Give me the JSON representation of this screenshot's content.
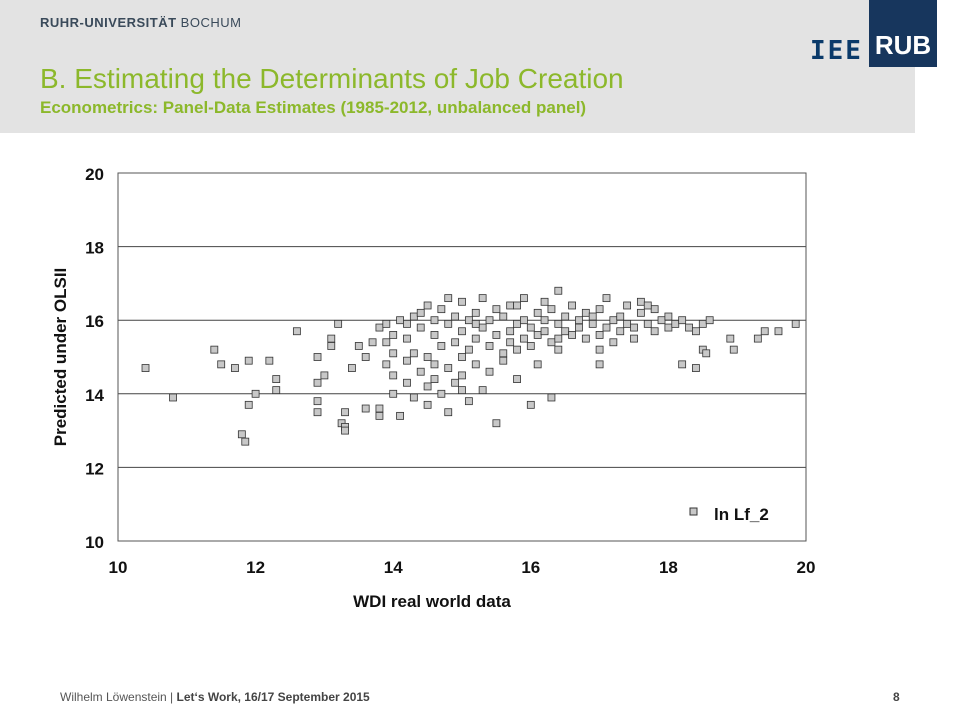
{
  "header": {
    "university_bold": "RUHR-UNIVERSITÄT",
    "university_rest": " BOCHUM",
    "title": "B. Estimating the Determinants of Job Creation",
    "subtitle": "Econometrics: Panel-Data Estimates (1985-2012, unbalanced panel)",
    "logo_iee": "IEE",
    "logo_rub": "RUB"
  },
  "colors": {
    "accent": "#8cb82b",
    "logo_blue": "#17365d",
    "marker_fill": "#c8c8c8",
    "marker_stroke": "#333333"
  },
  "chart_data": {
    "type": "scatter",
    "xlabel": "WDI real world data",
    "ylabel": "Predicted under OLSII",
    "xlim": [
      10,
      20
    ],
    "ylim": [
      10,
      20
    ],
    "xticks": [
      10,
      12,
      14,
      16,
      18,
      20
    ],
    "yticks": [
      10,
      12,
      14,
      16,
      18,
      20
    ],
    "grid": "horizontal",
    "legend_position": "bottom-right",
    "series": [
      {
        "name": "ln Lf_2",
        "marker": "square",
        "points": [
          [
            10.4,
            14.7
          ],
          [
            10.8,
            13.9
          ],
          [
            11.4,
            15.2
          ],
          [
            11.5,
            14.8
          ],
          [
            11.7,
            14.7
          ],
          [
            11.8,
            12.9
          ],
          [
            11.85,
            12.7
          ],
          [
            11.9,
            13.7
          ],
          [
            11.9,
            14.9
          ],
          [
            12.0,
            14.0
          ],
          [
            12.2,
            14.9
          ],
          [
            12.3,
            14.4
          ],
          [
            12.3,
            14.1
          ],
          [
            12.6,
            15.7
          ],
          [
            12.9,
            13.8
          ],
          [
            12.9,
            13.5
          ],
          [
            12.9,
            14.3
          ],
          [
            12.9,
            15.0
          ],
          [
            13.0,
            14.5
          ],
          [
            13.1,
            15.3
          ],
          [
            13.1,
            15.5
          ],
          [
            13.2,
            15.9
          ],
          [
            13.25,
            13.2
          ],
          [
            13.3,
            13.1
          ],
          [
            13.3,
            13.0
          ],
          [
            13.3,
            13.5
          ],
          [
            13.4,
            14.7
          ],
          [
            13.5,
            15.3
          ],
          [
            13.6,
            13.6
          ],
          [
            13.6,
            15.0
          ],
          [
            13.7,
            15.4
          ],
          [
            13.8,
            15.8
          ],
          [
            13.8,
            13.6
          ],
          [
            13.8,
            13.4
          ],
          [
            13.9,
            14.8
          ],
          [
            13.9,
            15.9
          ],
          [
            14.0,
            14.0
          ],
          [
            14.0,
            14.5
          ],
          [
            14.0,
            15.1
          ],
          [
            14.0,
            15.6
          ],
          [
            14.1,
            16.0
          ],
          [
            14.1,
            13.4
          ],
          [
            14.2,
            14.3
          ],
          [
            14.2,
            15.5
          ],
          [
            14.2,
            14.9
          ],
          [
            14.3,
            16.1
          ],
          [
            14.3,
            13.9
          ],
          [
            14.3,
            15.1
          ],
          [
            14.4,
            14.6
          ],
          [
            14.4,
            15.8
          ],
          [
            14.4,
            16.2
          ],
          [
            14.5,
            14.2
          ],
          [
            14.5,
            15.0
          ],
          [
            14.5,
            16.4
          ],
          [
            14.5,
            13.7
          ],
          [
            14.6,
            15.6
          ],
          [
            14.6,
            14.4
          ],
          [
            14.6,
            16.0
          ],
          [
            14.7,
            15.3
          ],
          [
            14.7,
            14.0
          ],
          [
            14.7,
            16.3
          ],
          [
            14.8,
            14.7
          ],
          [
            14.8,
            15.9
          ],
          [
            14.8,
            13.5
          ],
          [
            14.9,
            15.4
          ],
          [
            14.9,
            16.1
          ],
          [
            14.9,
            14.3
          ],
          [
            15.0,
            15.0
          ],
          [
            15.0,
            15.7
          ],
          [
            15.0,
            16.5
          ],
          [
            15.0,
            14.5
          ],
          [
            15.1,
            15.2
          ],
          [
            15.1,
            16.0
          ],
          [
            15.1,
            13.8
          ],
          [
            15.2,
            15.5
          ],
          [
            15.2,
            14.8
          ],
          [
            15.2,
            16.2
          ],
          [
            15.3,
            15.8
          ],
          [
            15.3,
            14.1
          ],
          [
            15.3,
            16.6
          ],
          [
            15.4,
            15.3
          ],
          [
            15.4,
            14.6
          ],
          [
            15.4,
            16.0
          ],
          [
            15.5,
            15.6
          ],
          [
            15.5,
            13.2
          ],
          [
            15.5,
            16.3
          ],
          [
            15.6,
            15.1
          ],
          [
            15.6,
            14.9
          ],
          [
            15.6,
            16.1
          ],
          [
            15.7,
            15.7
          ],
          [
            15.7,
            15.4
          ],
          [
            15.7,
            16.4
          ],
          [
            15.8,
            15.9
          ],
          [
            15.8,
            15.2
          ],
          [
            15.8,
            14.4
          ],
          [
            15.9,
            16.0
          ],
          [
            15.9,
            15.5
          ],
          [
            15.9,
            16.6
          ],
          [
            16.0,
            15.8
          ],
          [
            16.0,
            15.3
          ],
          [
            16.0,
            13.7
          ],
          [
            16.1,
            16.2
          ],
          [
            16.1,
            15.6
          ],
          [
            16.1,
            14.8
          ],
          [
            16.2,
            16.0
          ],
          [
            16.2,
            15.7
          ],
          [
            16.2,
            16.5
          ],
          [
            16.3,
            15.4
          ],
          [
            16.3,
            16.3
          ],
          [
            16.3,
            13.9
          ],
          [
            16.4,
            16.8
          ],
          [
            16.4,
            15.9
          ],
          [
            16.4,
            15.5
          ],
          [
            16.5,
            16.1
          ],
          [
            16.5,
            15.7
          ],
          [
            16.6,
            16.4
          ],
          [
            16.6,
            15.6
          ],
          [
            16.7,
            16.0
          ],
          [
            16.7,
            15.8
          ],
          [
            16.8,
            16.2
          ],
          [
            16.8,
            15.5
          ],
          [
            16.9,
            15.9
          ],
          [
            17.0,
            16.3
          ],
          [
            17.0,
            15.6
          ],
          [
            17.0,
            14.8
          ],
          [
            17.1,
            16.6
          ],
          [
            17.1,
            15.8
          ],
          [
            17.2,
            16.0
          ],
          [
            17.2,
            15.4
          ],
          [
            17.3,
            16.1
          ],
          [
            17.3,
            15.7
          ],
          [
            17.4,
            15.9
          ],
          [
            17.4,
            16.4
          ],
          [
            17.5,
            15.8
          ],
          [
            17.5,
            15.5
          ],
          [
            17.6,
            16.2
          ],
          [
            17.6,
            16.5
          ],
          [
            17.7,
            15.9
          ],
          [
            17.8,
            16.3
          ],
          [
            17.8,
            15.7
          ],
          [
            17.9,
            16.0
          ],
          [
            18.0,
            15.8
          ],
          [
            18.0,
            16.1
          ],
          [
            18.1,
            15.9
          ],
          [
            18.2,
            16.0
          ],
          [
            18.2,
            14.8
          ],
          [
            18.3,
            15.8
          ],
          [
            18.4,
            15.7
          ],
          [
            18.4,
            14.7
          ],
          [
            18.5,
            15.9
          ],
          [
            18.5,
            15.2
          ],
          [
            18.55,
            15.1
          ],
          [
            18.6,
            16.0
          ],
          [
            18.9,
            15.5
          ],
          [
            18.95,
            15.2
          ],
          [
            19.3,
            15.5
          ],
          [
            19.4,
            15.7
          ],
          [
            19.6,
            15.7
          ],
          [
            19.85,
            15.9
          ],
          [
            17.0,
            15.2
          ],
          [
            15.2,
            15.9
          ],
          [
            14.6,
            14.8
          ],
          [
            15.8,
            16.4
          ],
          [
            16.4,
            15.2
          ],
          [
            14.2,
            15.9
          ],
          [
            15.0,
            14.1
          ],
          [
            16.9,
            16.1
          ],
          [
            17.7,
            16.4
          ],
          [
            13.9,
            15.4
          ],
          [
            14.8,
            16.6
          ]
        ]
      }
    ]
  },
  "footer": {
    "author": "Wilhelm Löwenstein",
    "separator": " | ",
    "event": "Let‘s Work, 16/17 September 2015",
    "page": "8"
  }
}
